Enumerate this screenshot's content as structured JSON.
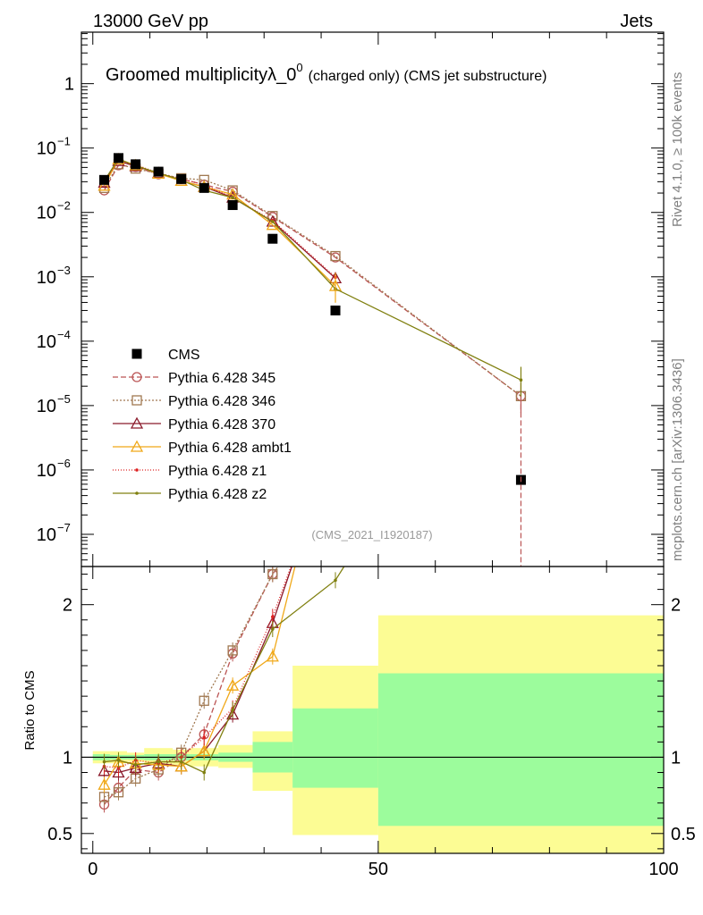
{
  "header": {
    "energy_label": "13000 GeV pp",
    "category_label": "Jets",
    "side_label_rivet": "Rivet 4.1.0, ≥ 100k events",
    "side_label_mcplots": "mcplots.cern.ch [arXiv:1306.3436]"
  },
  "chart_data": [
    {
      "type": "line",
      "panel": "main",
      "title": "Groomed multiplicityλ_0⁰ (charged only) (CMS jet substructure)",
      "title_main": "Groomed multiplicityλ_0",
      "title_sup": "0",
      "title_extra": "(charged only) (CMS jet substructure)",
      "watermark": "(CMS_2021_I1920187)",
      "xlabel": "",
      "ylabel": "",
      "xlim": [
        -2,
        100
      ],
      "ylim_log10": [
        -7.5,
        0.8
      ],
      "y_scale": "log",
      "y_tick_labels": [
        {
          "exp": 0,
          "label": "1",
          "base": "",
          "sup": ""
        },
        {
          "exp": -1,
          "label": "",
          "base": "10",
          "sup": "−1"
        },
        {
          "exp": -2,
          "label": "",
          "base": "10",
          "sup": "−2"
        },
        {
          "exp": -3,
          "label": "",
          "base": "10",
          "sup": "−3"
        },
        {
          "exp": -4,
          "label": "",
          "base": "10",
          "sup": "−4"
        },
        {
          "exp": -5,
          "label": "",
          "base": "10",
          "sup": "−5"
        },
        {
          "exp": -6,
          "label": "",
          "base": "10",
          "sup": "−6"
        },
        {
          "exp": -7,
          "label": "",
          "base": "10",
          "sup": "−7"
        }
      ],
      "x": [
        2,
        4.5,
        7.5,
        11.5,
        15.5,
        19.5,
        24.5,
        31.5,
        42.5,
        75
      ],
      "series": [
        {
          "name": "CMS",
          "marker": "square-filled",
          "color": "#000000",
          "dash": "none",
          "values": [
            0.032,
            0.07,
            0.056,
            0.043,
            0.033,
            0.024,
            0.013,
            0.0039,
            0.0003,
            7e-07
          ]
        },
        {
          "name": "Pythia 6.428 345",
          "marker": "circle-open",
          "color": "#bb5555",
          "dash": "6,3",
          "values": [
            0.022,
            0.054,
            0.051,
            0.039,
            0.033,
            0.027,
            0.021,
            0.0085,
            0.002,
            1.4e-05
          ]
        },
        {
          "name": "Pythia 6.428 346",
          "marker": "square-open",
          "color": "#a07850",
          "dash": "2,2",
          "values": [
            0.024,
            0.056,
            0.048,
            0.04,
            0.034,
            0.032,
            0.022,
            0.0088,
            0.0021,
            1.4e-05
          ]
        },
        {
          "name": "Pythia 6.428 370",
          "marker": "triangle-open",
          "color": "#8b1a2b",
          "dash": "none",
          "values": [
            0.029,
            0.063,
            0.052,
            0.041,
            0.031,
            0.025,
            0.017,
            0.0072,
            0.00095,
            null
          ]
        },
        {
          "name": "Pythia 6.428 ambt1",
          "marker": "triangle-open",
          "color": "#f0a818",
          "dash": "none",
          "values": [
            0.026,
            0.067,
            0.054,
            0.04,
            0.031,
            0.025,
            0.019,
            0.0064,
            0.00072,
            null
          ]
        },
        {
          "name": "Pythia 6.428 z1",
          "marker": "dot",
          "color": "#dd2222",
          "dash": "1,2",
          "values": [
            0.03,
            0.065,
            0.055,
            0.041,
            0.033,
            0.027,
            0.017,
            0.0075,
            0.00098,
            null
          ]
        },
        {
          "name": "Pythia 6.428 z2",
          "marker": "dot",
          "color": "#808010",
          "dash": "none",
          "values": [
            0.031,
            0.068,
            0.053,
            0.041,
            0.032,
            0.022,
            0.017,
            0.0072,
            0.00065,
            2.5e-05
          ]
        }
      ]
    },
    {
      "type": "line",
      "panel": "ratio",
      "xlabel": "",
      "ylabel": "Ratio to CMS",
      "xlim": [
        -2,
        100
      ],
      "ylim": [
        0.37,
        2.25
      ],
      "y_tick_labels": [
        {
          "value": 0.5,
          "label": "0.5"
        },
        {
          "value": 1,
          "label": "1"
        },
        {
          "value": 2,
          "label": "2"
        }
      ],
      "x_tick_labels": [
        {
          "value": 0,
          "label": "0"
        },
        {
          "value": 50,
          "label": "50"
        },
        {
          "value": 100,
          "label": "100"
        }
      ],
      "uncertainty_bands": [
        {
          "x0": 0,
          "x1": 3,
          "stat_lo": 0.98,
          "stat_hi": 1.02,
          "tot_lo": 0.96,
          "tot_hi": 1.04
        },
        {
          "x0": 3,
          "x1": 6,
          "stat_lo": 0.985,
          "stat_hi": 1.015,
          "tot_lo": 0.96,
          "tot_hi": 1.04
        },
        {
          "x0": 6,
          "x1": 9,
          "stat_lo": 0.985,
          "stat_hi": 1.015,
          "tot_lo": 0.97,
          "tot_hi": 1.03
        },
        {
          "x0": 9,
          "x1": 14,
          "stat_lo": 0.98,
          "stat_hi": 1.02,
          "tot_lo": 0.95,
          "tot_hi": 1.06
        },
        {
          "x0": 14,
          "x1": 17,
          "stat_lo": 0.98,
          "stat_hi": 1.02,
          "tot_lo": 0.95,
          "tot_hi": 1.05
        },
        {
          "x0": 17,
          "x1": 22,
          "stat_lo": 0.98,
          "stat_hi": 1.02,
          "tot_lo": 0.94,
          "tot_hi": 1.06
        },
        {
          "x0": 22,
          "x1": 28,
          "stat_lo": 0.97,
          "stat_hi": 1.03,
          "tot_lo": 0.93,
          "tot_hi": 1.08
        },
        {
          "x0": 28,
          "x1": 35,
          "stat_lo": 0.9,
          "stat_hi": 1.1,
          "tot_lo": 0.78,
          "tot_hi": 1.17
        },
        {
          "x0": 35,
          "x1": 50,
          "stat_lo": 0.8,
          "stat_hi": 1.32,
          "tot_lo": 0.49,
          "tot_hi": 1.6
        },
        {
          "x0": 50,
          "x1": 100,
          "stat_lo": 0.55,
          "stat_hi": 1.55,
          "tot_lo": 0.37,
          "tot_hi": 1.93
        }
      ],
      "stat_band_color": "#9cfc9c",
      "total_band_color": "#fcfc94",
      "series": [
        {
          "name": "Pythia 6.428 345",
          "color": "#bb5555",
          "dash": "6,3",
          "marker": "circle-open",
          "values": [
            0.69,
            0.8,
            0.92,
            0.9,
            1.0,
            1.15,
            1.68,
            2.2,
            null,
            null
          ]
        },
        {
          "name": "Pythia 6.428 346",
          "color": "#a07850",
          "dash": "2,2",
          "marker": "square-open",
          "values": [
            0.74,
            0.77,
            0.86,
            0.92,
            1.03,
            1.37,
            1.7,
            2.2,
            null,
            null
          ]
        },
        {
          "name": "Pythia 6.428 370",
          "color": "#8b1a2b",
          "dash": "none",
          "marker": "triangle-open",
          "values": [
            0.91,
            0.9,
            0.93,
            0.96,
            0.94,
            1.04,
            1.28,
            1.88,
            null,
            null
          ]
        },
        {
          "name": "Pythia 6.428 ambt1",
          "color": "#f0a818",
          "dash": "none",
          "marker": "triangle-open",
          "values": [
            0.82,
            0.97,
            0.96,
            0.95,
            0.94,
            1.04,
            1.47,
            1.66,
            null,
            null
          ]
        },
        {
          "name": "Pythia 6.428 z1",
          "color": "#dd2222",
          "dash": "1,2",
          "marker": "dot",
          "values": [
            0.94,
            0.93,
            0.98,
            0.96,
            1.0,
            1.13,
            1.32,
            1.92,
            null,
            null
          ]
        },
        {
          "name": "Pythia 6.428 z2",
          "color": "#808010",
          "dash": "none",
          "marker": "dot",
          "values": [
            0.97,
            0.98,
            0.95,
            0.97,
            0.97,
            0.9,
            1.31,
            1.84,
            2.16,
            null
          ]
        }
      ]
    }
  ]
}
